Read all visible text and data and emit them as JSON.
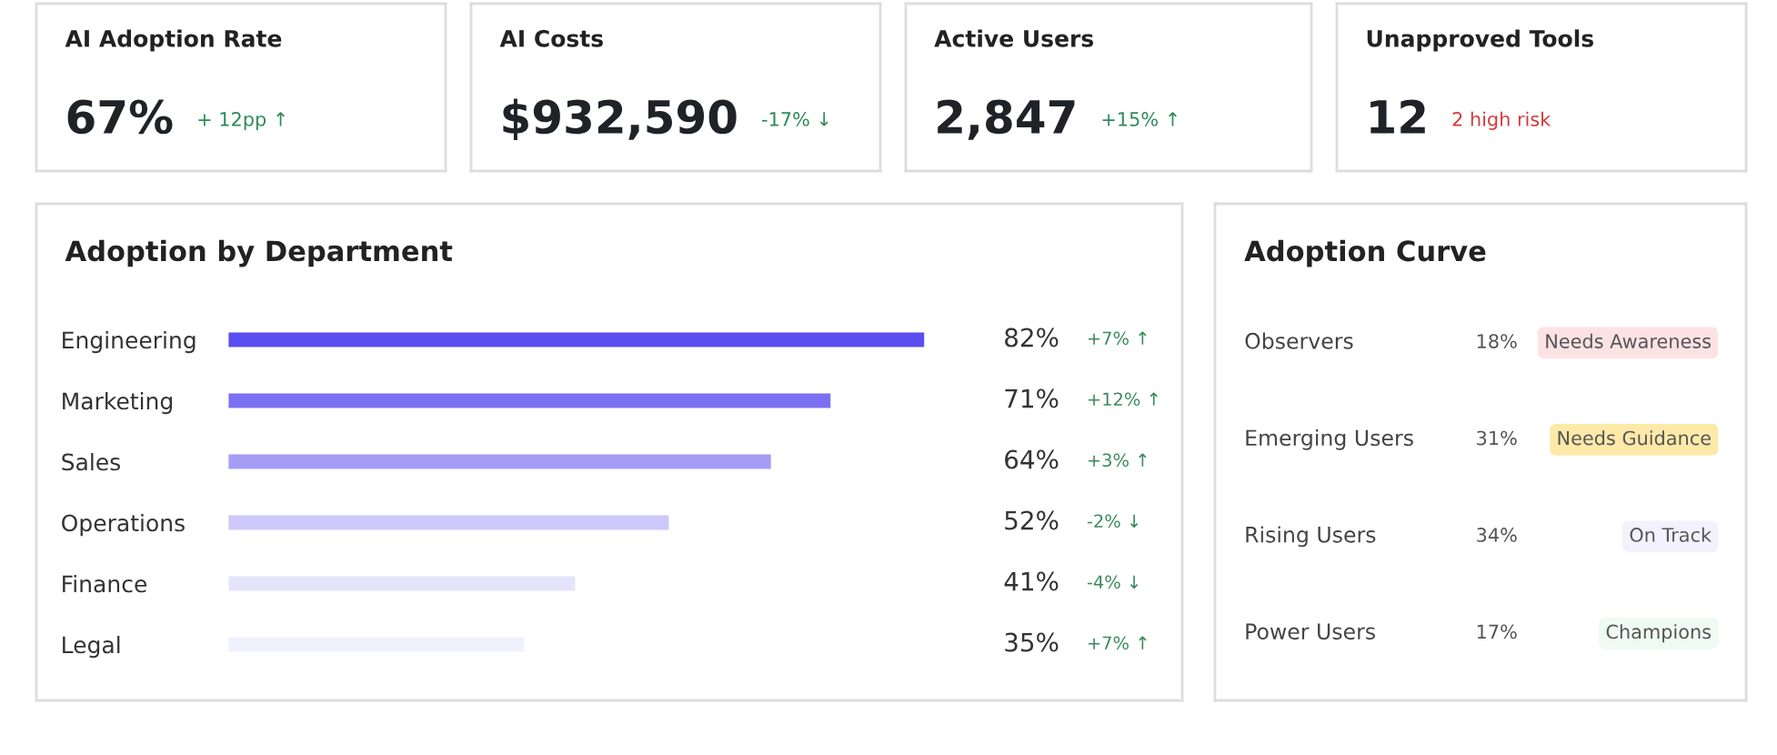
{
  "chart_data": [
    {
      "type": "other",
      "title": "AI Adoption Rate",
      "annotations": [
        "67%",
        "+ 12pp ↑"
      ],
      "colors": [
        "#1f2328",
        "#2e8b57"
      ]
    },
    {
      "type": "other",
      "title": "AI Costs",
      "annotations": [
        "$932,590",
        "-17% ↓"
      ],
      "colors": [
        "#1f2328",
        "#2e8b57"
      ]
    },
    {
      "type": "other",
      "title": "Active Users",
      "annotations": [
        "2,847",
        "+15% ↑"
      ],
      "colors": [
        "#1f2328",
        "#2e8b57"
      ]
    },
    {
      "type": "other",
      "title": "Unapproved Tools",
      "annotations": [
        "12",
        "2 high risk"
      ],
      "colors": [
        "#1f2328",
        "#d23b3b"
      ]
    },
    {
      "type": "bar",
      "orientation": "horizontal",
      "title": "Adoption by Department",
      "categories": [
        "Engineering",
        "Marketing",
        "Sales",
        "Operations",
        "Finance",
        "Legal"
      ],
      "values": [
        82,
        71,
        64,
        52,
        41,
        35
      ],
      "value_labels": [
        "82%",
        "71%",
        "64%",
        "52%",
        "41%",
        "35%"
      ],
      "colors": [
        "#5b4ef0",
        "#7b70f2",
        "#a59cf5",
        "#cdc8f9",
        "#e6e3fc",
        "#f1f0fd"
      ],
      "tick_labels": "y",
      "annotations": [
        "+7% ↑",
        "+12% ↑",
        "+3% ↑",
        "-2% ↓",
        "-4% ↓",
        "+7% ↑"
      ]
    },
    {
      "type": "other",
      "title": "Adoption Curve",
      "categories": [
        "Observers",
        "Emerging Users",
        "Rising Users",
        "Power Users"
      ],
      "value_labels": [
        "18%",
        "31%",
        "34%",
        "17%"
      ],
      "annotations": [
        {
          "text": "Needs Awareness",
          "y": "Observers"
        },
        {
          "text": "Needs Guidance",
          "y": "Emerging Users"
        },
        {
          "text": "On Track",
          "y": "Rising Users"
        },
        {
          "text": "Champions",
          "y": "Power Users"
        }
      ],
      "colors": [
        "#fde2e4",
        "#fde9a8",
        "#f3f1fe",
        "#eefaf3"
      ]
    }
  ]
}
